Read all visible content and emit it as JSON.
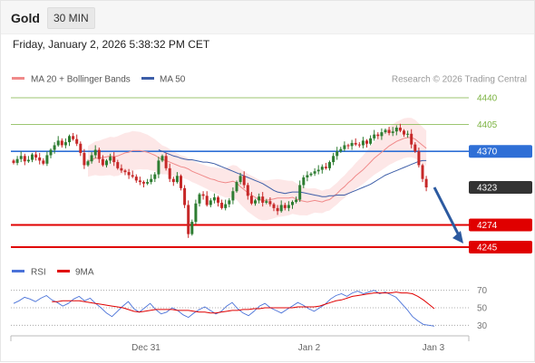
{
  "header": {
    "symbol": "Gold",
    "interval": "30 MIN"
  },
  "datetime": "Friday, January 2, 2026 5:38:32 PM CET",
  "legend": {
    "ma20": "MA 20 + Bollinger Bands",
    "ma50": "MA 50",
    "credit": "Research © 2026 Trading Central"
  },
  "rsi_legend": {
    "rsi": "RSI",
    "ma": "9MA"
  },
  "colors": {
    "ma20": "#f08a8a",
    "ma50": "#3d5ea8",
    "band": "#fde3e3",
    "up": "#2e7d32",
    "down": "#c62828",
    "pivot": "#2f6fd6",
    "support": "#e00000",
    "last": "#333333",
    "resistance_line": "#7cb342",
    "arrow": "#2c5aa0",
    "rsi": "#4a72d8"
  },
  "levels": {
    "r2": {
      "value": 4440,
      "label": "4440"
    },
    "r1": {
      "value": 4405,
      "label": "4405"
    },
    "pivot": {
      "value": 4370,
      "label": "4370"
    },
    "last": {
      "value": 4323,
      "label": "4323"
    },
    "s1": {
      "value": 4274,
      "label": "4274"
    },
    "s2": {
      "value": 4245,
      "label": "4245"
    }
  },
  "xaxis": {
    "labels": [
      "Dec 31",
      "Jan 2",
      "Jan 3"
    ]
  },
  "rsi_axis": {
    "labels": [
      "70",
      "50",
      "30"
    ]
  },
  "chart_data": {
    "type": "candlestick",
    "instrument": "Gold",
    "timeframe": "30 MIN",
    "ylim": [
      4252,
      4434
    ],
    "closes": [
      4355,
      4360,
      4364,
      4357,
      4359,
      4366,
      4362,
      4358,
      4354,
      4365,
      4372,
      4378,
      4384,
      4378,
      4382,
      4390,
      4386,
      4380,
      4368,
      4352,
      4357,
      4365,
      4372,
      4360,
      4352,
      4358,
      4363,
      4356,
      4348,
      4345,
      4343,
      4339,
      4337,
      4332,
      4330,
      4328,
      4330,
      4334,
      4340,
      4358,
      4364,
      4348,
      4334,
      4330,
      4338,
      4322,
      4300,
      4262,
      4278,
      4302,
      4314,
      4312,
      4300,
      4306,
      4310,
      4303,
      4296,
      4301,
      4306,
      4318,
      4330,
      4338,
      4326,
      4312,
      4302,
      4306,
      4311,
      4303,
      4305,
      4301,
      4296,
      4292,
      4300,
      4296,
      4300,
      4304,
      4307,
      4326,
      4336,
      4339,
      4341,
      4344,
      4346,
      4350,
      4348,
      4356,
      4364,
      4370,
      4373,
      4378,
      4377,
      4381,
      4379,
      4378,
      4384,
      4380,
      4387,
      4392,
      4390,
      4395,
      4398,
      4394,
      4396,
      4401,
      4397,
      4392,
      4393,
      4379,
      4370,
      4352,
      4334,
      4323
    ],
    "ma20": [
      4357,
      4359,
      4361,
      4361,
      4362,
      4363,
      4364,
      4363,
      4364,
      4366,
      4368,
      4369,
      4371,
      4371,
      4371,
      4370,
      4369,
      4367,
      4365,
      4362,
      4359,
      4358,
      4356,
      4354,
      4352,
      4350,
      4349,
      4347,
      4344,
      4342,
      4340,
      4338,
      4336,
      4334,
      4333,
      4331,
      4330,
      4329,
      4330,
      4331,
      4329,
      4324,
      4320,
      4316,
      4313,
      4310,
      4307,
      4306,
      4306,
      4307,
      4308,
      4309,
      4309,
      4309,
      4309,
      4310,
      4308,
      4306,
      4305,
      4304,
      4305,
      4306,
      4305,
      4304,
      4306,
      4307,
      4311,
      4315,
      4320,
      4324,
      4329,
      4333,
      4338,
      4342,
      4346,
      4351,
      4356,
      4361,
      4365,
      4369,
      4373,
      4377,
      4380,
      4383,
      4385,
      4387,
      4388,
      4388,
      4386,
      4382,
      4378,
      4374
    ],
    "ma50": [
      4372,
      4370,
      4368,
      4366,
      4364,
      4363,
      4361,
      4360,
      4359,
      4359,
      4358,
      4357,
      4356,
      4356,
      4355,
      4354,
      4352,
      4350,
      4348,
      4346,
      4344,
      4342,
      4340,
      4338,
      4336,
      4334,
      4332,
      4330,
      4328,
      4325,
      4322,
      4319,
      4317,
      4316,
      4315,
      4316,
      4317,
      4317,
      4317,
      4316,
      4315,
      4314,
      4313,
      4312,
      4311,
      4311,
      4312,
      4312,
      4313,
      4313,
      4313,
      4315,
      4317,
      4319,
      4321,
      4323,
      4325,
      4327,
      4330,
      4333,
      4336,
      4339,
      4341,
      4343,
      4345,
      4347,
      4349,
      4351,
      4353,
      4355,
      4357,
      4358,
      4358
    ],
    "rsi": [
      55,
      58,
      62,
      60,
      57,
      61,
      64,
      59,
      56,
      52,
      55,
      60,
      63,
      58,
      61,
      55,
      50,
      44,
      40,
      46,
      52,
      57,
      49,
      45,
      50,
      55,
      48,
      43,
      45,
      50,
      47,
      42,
      39,
      44,
      48,
      51,
      47,
      43,
      46,
      52,
      56,
      49,
      44,
      41,
      46,
      52,
      55,
      50,
      47,
      44,
      48,
      52,
      56,
      53,
      49,
      46,
      50,
      54,
      60,
      64,
      66,
      63,
      67,
      69,
      66,
      68,
      70,
      66,
      68,
      65,
      62,
      55,
      48,
      40,
      35,
      31,
      30,
      29
    ],
    "rsi_ma9": [
      57,
      57,
      58,
      58,
      58,
      58,
      57,
      56,
      55,
      54,
      53,
      52,
      51,
      50,
      48,
      46,
      45,
      46,
      47,
      48,
      48,
      48,
      48,
      47,
      47,
      47,
      46,
      45,
      45,
      44,
      44,
      45,
      46,
      47,
      47,
      48,
      48,
      49,
      49,
      50,
      50,
      50,
      50,
      50,
      50,
      51,
      51,
      51,
      51,
      52,
      54,
      56,
      58,
      59,
      61,
      63,
      64,
      65,
      66,
      67,
      67,
      67,
      67,
      68,
      67,
      67,
      66,
      63,
      59,
      54,
      49
    ],
    "rsi_scale": [
      20,
      80
    ]
  }
}
